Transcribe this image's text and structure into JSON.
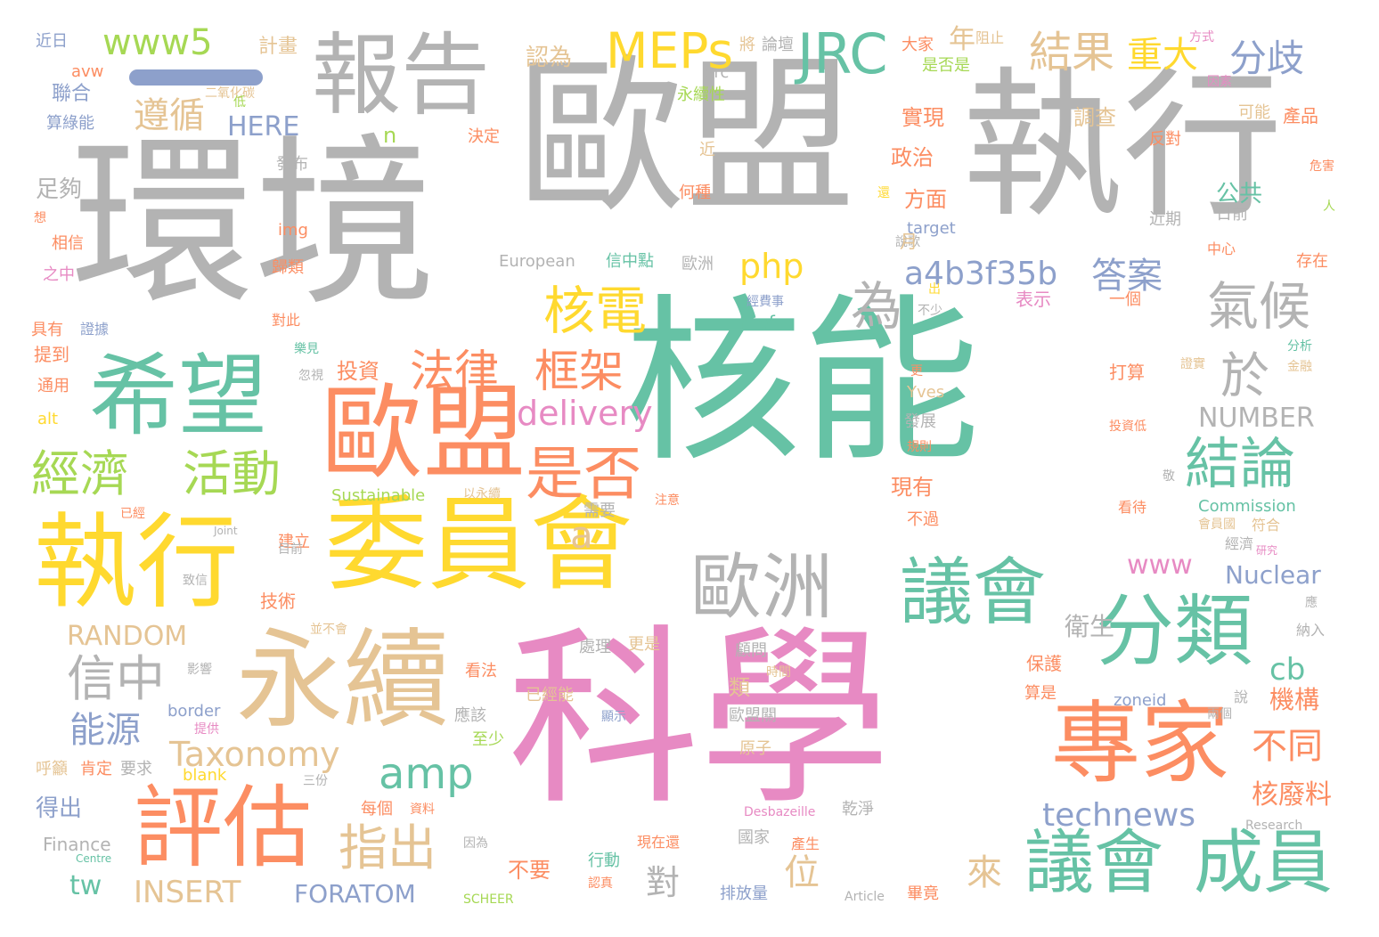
{
  "palette": {
    "gray": "#b3b3b3",
    "green": "#66c2a5",
    "orange": "#fc8d62",
    "blue": "#8da0cb",
    "pink": "#e78ac3",
    "lime": "#a6d854",
    "yellow": "#ffd92f",
    "tan": "#e5c494"
  },
  "words": [
    "核能",
    "科學",
    "環境",
    "歐盟",
    "執行",
    "委員會",
    "執行",
    "歐盟",
    "永續",
    "專家",
    "評估",
    "報告",
    "希望",
    "議會",
    "分類",
    "成員",
    "議會",
    "歐洲",
    "JRC",
    "MEPs",
    "www5",
    "結果",
    "重大",
    "分歧",
    "遵循",
    "年",
    "為",
    "氣候",
    "核電",
    "是否",
    "法律",
    "框架",
    "結論",
    "經濟",
    "活動",
    "於",
    "php",
    "a4b3f35b",
    "答案",
    "delivery",
    "NUMBER",
    "a",
    "www",
    "Nuclear",
    "信中",
    "能源",
    "Taxonomy",
    "amp",
    "technews",
    "指出",
    "位",
    "來",
    "對",
    "不同",
    "核廢料",
    "cb",
    "機構",
    "衛生",
    "RANDOM",
    "INSERT",
    "FORATOM",
    "tw",
    "不要",
    "HERE",
    "n",
    "公共",
    "政治",
    "方面",
    "實現",
    "調查",
    "聯合",
    "足夠",
    "計畫",
    "認為",
    "近日",
    "avw",
    "算綠能",
    "二氧化碳",
    "永續性",
    "將",
    "論壇",
    "大家",
    "是否是",
    "阻止",
    "方式",
    "因素",
    "產品",
    "可能",
    "反對",
    "危害",
    "人",
    "日前",
    "近期",
    "中心",
    "存在",
    "分析",
    "金融",
    "證實",
    "投資低",
    "敬",
    "看待",
    "Commission",
    "會員國",
    "經濟",
    "符合",
    "研究",
    "應",
    "納入",
    "說",
    "兩個",
    "算是",
    "zoneid",
    "時間",
    "顧問",
    "原子",
    "歐盟關",
    "至少",
    "處理",
    "更是",
    "已經能",
    "應該",
    "顯示",
    "提供",
    "border",
    "肯定",
    "要求",
    "blank",
    "三份",
    "呼籲",
    "得出",
    "每個",
    "資料",
    "Finance",
    "Centre",
    "因為",
    "行動",
    "認真",
    "SCHEER",
    "Article",
    "畢竟",
    "排放量",
    "國家",
    "產生",
    "現在還",
    "乾淨",
    "Desbazeille",
    "Research",
    "src",
    "決定",
    "發布",
    "近",
    "何種",
    "還",
    "target",
    "說歌",
    "img",
    "相信",
    "歸類",
    "European",
    "信中點",
    "歐洲",
    "想",
    "之中",
    "出",
    "不少",
    "表示",
    "一個",
    "具有",
    "證據",
    "對此",
    "經費事",
    "href",
    "樂見",
    "提到",
    "通用",
    "忽視",
    "投資",
    "更",
    "alt",
    "Yves",
    "發展",
    "規則",
    "打算",
    "Sustainable",
    "以永續",
    "建立",
    "注意",
    "需要",
    "現有",
    "不過",
    "已經",
    "目前",
    "致信",
    "Joint",
    "並不會",
    "影響",
    "看法",
    "技術",
    "保護",
    "類",
    "月",
    "低"
  ]
}
